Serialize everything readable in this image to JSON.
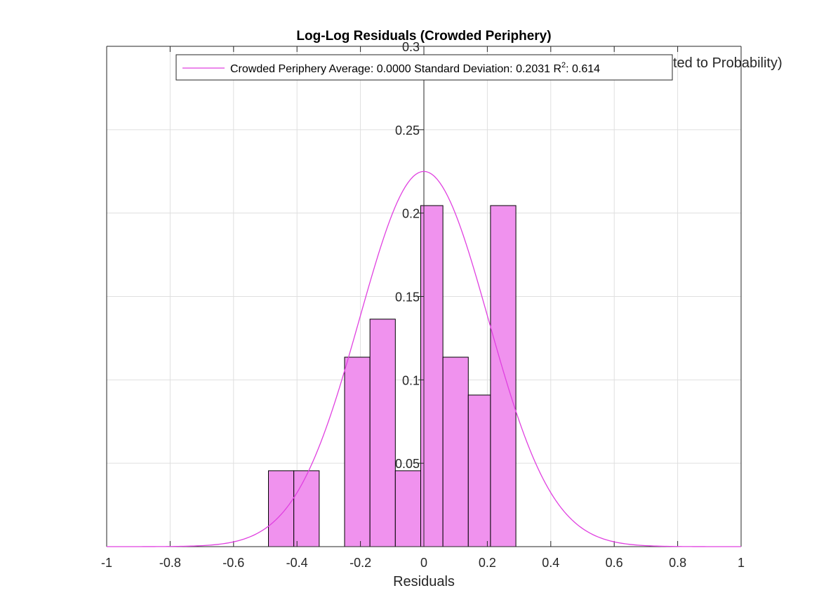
{
  "chart_data": {
    "type": "bar",
    "title": "Log-Log Residuals (Crowded Periphery)",
    "xlabel": "Residuals",
    "ylabel_visible_fragment": "ted to Probability)",
    "xlim": [
      -1,
      1
    ],
    "ylim": [
      0,
      0.3
    ],
    "xticks": [
      -1,
      -0.8,
      -0.6,
      -0.4,
      -0.2,
      0,
      0.2,
      0.4,
      0.6,
      0.8,
      1
    ],
    "xtick_labels": [
      "-1",
      "-0.8",
      "-0.6",
      "-0.4",
      "-0.2",
      "0",
      "0.2",
      "0.4",
      "0.6",
      "0.8",
      "1"
    ],
    "yticks": [
      0.05,
      0.1,
      0.15,
      0.2,
      0.25,
      0.3
    ],
    "ytick_labels": [
      "0.05",
      "0.1",
      "0.15",
      "0.2",
      "0.25",
      "0.3"
    ],
    "grid": true,
    "y_axis_location": "origin",
    "bar_color": "#f092ee",
    "bar_edge_color": "#000000",
    "curve_color": "#e040e0",
    "bins": [
      {
        "left": -0.49,
        "right": -0.41,
        "value": 0.0455
      },
      {
        "left": -0.41,
        "right": -0.33,
        "value": 0.0455
      },
      {
        "left": -0.33,
        "right": -0.25,
        "value": 0.0
      },
      {
        "left": -0.25,
        "right": -0.17,
        "value": 0.1136
      },
      {
        "left": -0.17,
        "right": -0.09,
        "value": 0.1364
      },
      {
        "left": -0.09,
        "right": -0.01,
        "value": 0.0455
      },
      {
        "left": -0.01,
        "right": 0.06,
        "value": 0.2045
      },
      {
        "left": 0.06,
        "right": 0.14,
        "value": 0.1136
      },
      {
        "left": 0.14,
        "right": 0.21,
        "value": 0.0909
      },
      {
        "left": 0.21,
        "right": 0.29,
        "value": 0.2045
      }
    ],
    "fit": {
      "mean": 0.0,
      "std": 0.2031,
      "peak": 0.225
    },
    "legend": {
      "location": "top",
      "series_name": "Crowded Periphery",
      "text_main": "Crowded Periphery Average: 0.0000 Standard Deviation: 0.2031 R",
      "text_sup": "2",
      "text_tail": ": 0.614"
    }
  }
}
